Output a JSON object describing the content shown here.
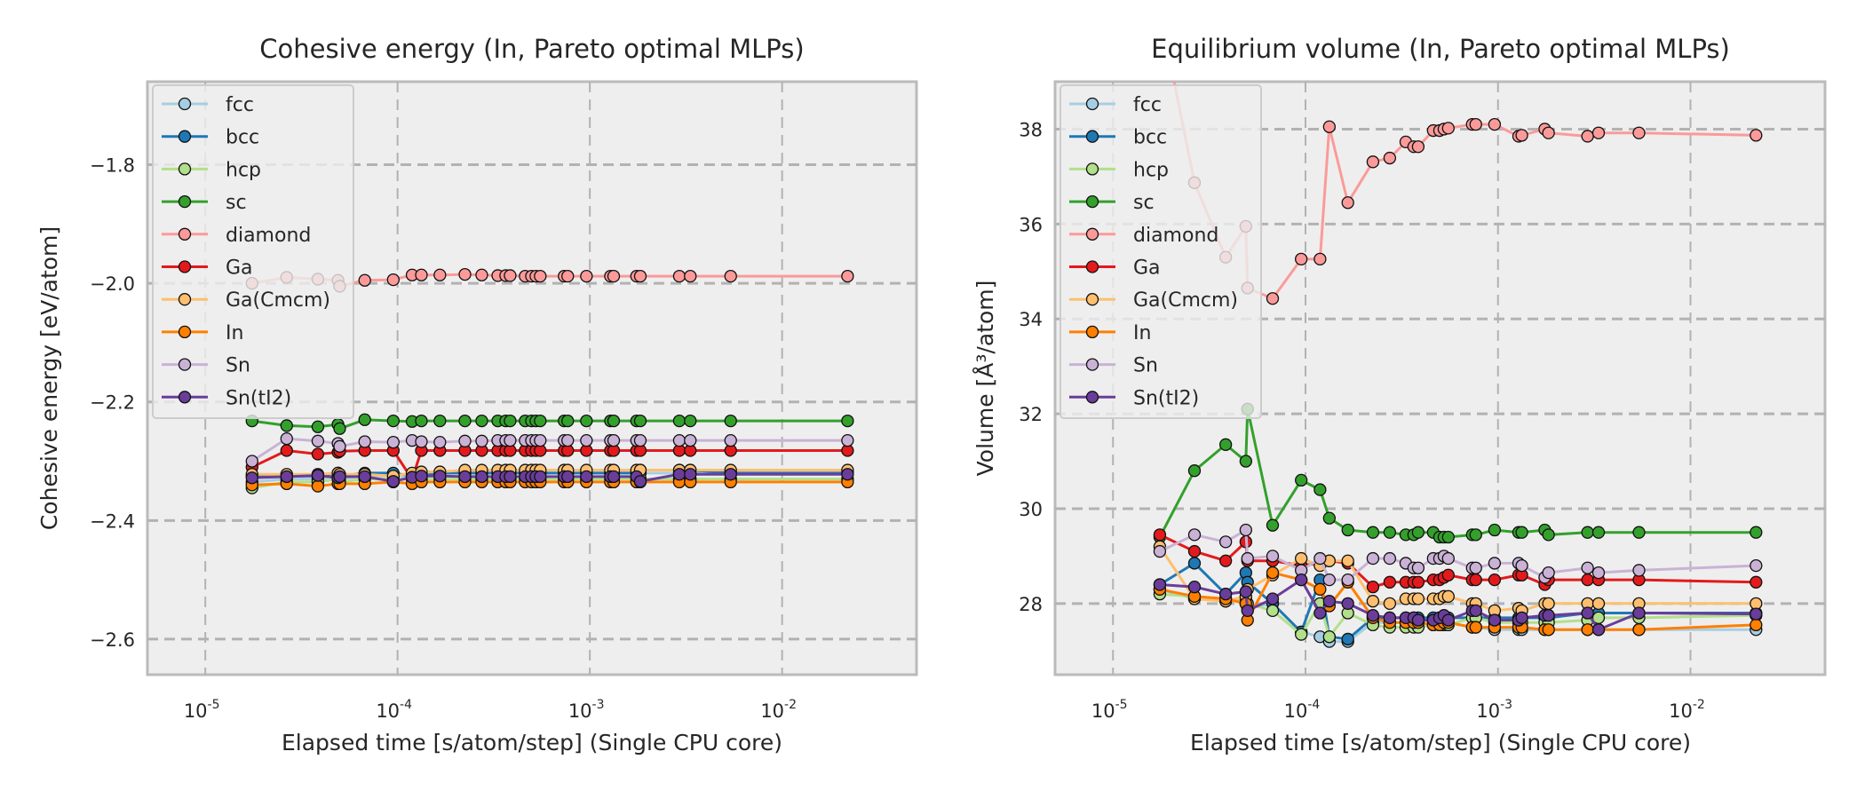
{
  "chart_data": [
    {
      "type": "line",
      "title": "Cohesive energy (In, Pareto optimal MLPs)",
      "xlabel": "Elapsed time [s/atom/step] (Single CPU core)",
      "ylabel": "Cohesive energy [eV/atom]",
      "xscale": "log",
      "xlim": [
        5e-06,
        0.05
      ],
      "ylim": [
        -2.66,
        -1.66
      ],
      "xticks": [
        1e-05,
        0.0001,
        0.001,
        0.01
      ],
      "xtick_labels": [
        {
          "base": "10",
          "exp": "-5"
        },
        {
          "base": "10",
          "exp": "-4"
        },
        {
          "base": "10",
          "exp": "-3"
        },
        {
          "base": "10",
          "exp": "-2"
        }
      ],
      "yticks": [
        -1.8,
        -2.0,
        -2.2,
        -2.4,
        -2.6
      ],
      "ytick_labels": [
        "−1.8",
        "−2.0",
        "−2.2",
        "−2.4",
        "−2.6"
      ],
      "grid": true,
      "legend_position": "top-left",
      "x": [
        1.75e-05,
        2.65e-05,
        3.85e-05,
        4.9e-05,
        5e-05,
        6.75e-05,
        9.5e-05,
        0.000119,
        0.000133,
        0.000166,
        0.000224,
        0.000274,
        0.000332,
        0.000365,
        0.000385,
        0.000461,
        0.000497,
        0.000524,
        0.000552,
        0.000735,
        0.000767,
        0.00096,
        0.00128,
        0.00133,
        0.00175,
        0.00183,
        0.00292,
        0.00333,
        0.0054,
        0.0219
      ],
      "series": [
        {
          "name": "fcc",
          "color": "#a6cee3",
          "values": [
            -2.335,
            -2.33,
            -2.33,
            -2.325,
            -2.33,
            -2.325,
            -2.325,
            -2.325,
            -2.32,
            -2.32,
            -2.32,
            -2.32,
            -2.32,
            -2.32,
            -2.32,
            -2.32,
            -2.32,
            -2.32,
            -2.32,
            -2.32,
            -2.32,
            -2.32,
            -2.32,
            -2.32,
            -2.32,
            -2.32,
            -2.32,
            -2.32,
            -2.32,
            -2.32
          ]
        },
        {
          "name": "bcc",
          "color": "#1f78b4",
          "values": [
            -2.325,
            -2.325,
            -2.325,
            -2.32,
            -2.325,
            -2.32,
            -2.32,
            -2.325,
            -2.325,
            -2.32,
            -2.32,
            -2.32,
            -2.32,
            -2.32,
            -2.32,
            -2.32,
            -2.32,
            -2.32,
            -2.32,
            -2.32,
            -2.32,
            -2.32,
            -2.32,
            -2.32,
            -2.32,
            -2.315,
            -2.315,
            -2.315,
            -2.32,
            -2.32
          ]
        },
        {
          "name": "hcp",
          "color": "#b2df8a",
          "values": [
            -2.345,
            -2.335,
            -2.335,
            -2.33,
            -2.335,
            -2.33,
            -2.33,
            -2.33,
            -2.33,
            -2.33,
            -2.33,
            -2.33,
            -2.33,
            -2.33,
            -2.33,
            -2.33,
            -2.33,
            -2.33,
            -2.33,
            -2.33,
            -2.33,
            -2.33,
            -2.33,
            -2.33,
            -2.33,
            -2.33,
            -2.33,
            -2.33,
            -2.33,
            -2.33
          ]
        },
        {
          "name": "sc",
          "color": "#33a02c",
          "values": [
            -2.232,
            -2.24,
            -2.242,
            -2.238,
            -2.245,
            -2.23,
            -2.232,
            -2.233,
            -2.232,
            -2.232,
            -2.232,
            -2.232,
            -2.232,
            -2.232,
            -2.232,
            -2.232,
            -2.232,
            -2.232,
            -2.232,
            -2.232,
            -2.232,
            -2.232,
            -2.232,
            -2.232,
            -2.232,
            -2.232,
            -2.232,
            -2.232,
            -2.232,
            -2.232
          ]
        },
        {
          "name": "diamond",
          "color": "#fb9a99",
          "values": [
            -2.0,
            -1.99,
            -1.993,
            -1.995,
            -2.005,
            -1.995,
            -1.994,
            -1.986,
            -1.986,
            -1.986,
            -1.985,
            -1.986,
            -1.987,
            -1.987,
            -1.987,
            -1.988,
            -1.988,
            -1.988,
            -1.988,
            -1.988,
            -1.988,
            -1.988,
            -1.988,
            -1.988,
            -1.988,
            -1.988,
            -1.988,
            -1.988,
            -1.988,
            -1.988
          ]
        },
        {
          "name": "Ga",
          "color": "#e31a1c",
          "values": [
            -2.31,
            -2.282,
            -2.288,
            -2.285,
            -2.283,
            -2.282,
            -2.282,
            -2.33,
            -2.282,
            -2.282,
            -2.282,
            -2.282,
            -2.282,
            -2.282,
            -2.282,
            -2.282,
            -2.282,
            -2.282,
            -2.282,
            -2.282,
            -2.282,
            -2.282,
            -2.282,
            -2.282,
            -2.282,
            -2.282,
            -2.282,
            -2.282,
            -2.282,
            -2.282
          ]
        },
        {
          "name": "Ga(Cmcm)",
          "color": "#fdbf6f",
          "values": [
            -2.322,
            -2.322,
            -2.322,
            -2.32,
            -2.322,
            -2.322,
            -2.325,
            -2.32,
            -2.318,
            -2.318,
            -2.315,
            -2.315,
            -2.315,
            -2.315,
            -2.315,
            -2.315,
            -2.315,
            -2.315,
            -2.315,
            -2.315,
            -2.315,
            -2.315,
            -2.315,
            -2.315,
            -2.315,
            -2.315,
            -2.315,
            -2.315,
            -2.315,
            -2.315
          ]
        },
        {
          "name": "In",
          "color": "#ff7f00",
          "values": [
            -2.34,
            -2.338,
            -2.342,
            -2.338,
            -2.338,
            -2.338,
            -2.335,
            -2.338,
            -2.335,
            -2.335,
            -2.335,
            -2.335,
            -2.335,
            -2.335,
            -2.335,
            -2.335,
            -2.335,
            -2.335,
            -2.335,
            -2.335,
            -2.335,
            -2.335,
            -2.335,
            -2.335,
            -2.335,
            -2.335,
            -2.335,
            -2.335,
            -2.335,
            -2.335
          ]
        },
        {
          "name": "Sn",
          "color": "#cab2d6",
          "values": [
            -2.3,
            -2.262,
            -2.266,
            -2.27,
            -2.275,
            -2.267,
            -2.268,
            -2.265,
            -2.267,
            -2.268,
            -2.266,
            -2.266,
            -2.265,
            -2.265,
            -2.265,
            -2.265,
            -2.265,
            -2.265,
            -2.265,
            -2.265,
            -2.265,
            -2.265,
            -2.265,
            -2.265,
            -2.265,
            -2.265,
            -2.265,
            -2.265,
            -2.265,
            -2.265
          ]
        },
        {
          "name": "Sn(tI2)",
          "color": "#6a3d9a",
          "values": [
            -2.328,
            -2.326,
            -2.324,
            -2.328,
            -2.326,
            -2.326,
            -2.334,
            -2.327,
            -2.325,
            -2.325,
            -2.326,
            -2.326,
            -2.326,
            -2.326,
            -2.326,
            -2.326,
            -2.326,
            -2.326,
            -2.326,
            -2.326,
            -2.326,
            -2.326,
            -2.326,
            -2.326,
            -2.326,
            -2.334,
            -2.322,
            -2.322,
            -2.322,
            -2.322
          ]
        }
      ]
    },
    {
      "type": "line",
      "title": "Equilibrium volume (In, Pareto optimal MLPs)",
      "xlabel": "Elapsed time [s/atom/step] (Single CPU core)",
      "ylabel": "Volume [Å³/atom]",
      "xscale": "log",
      "xlim": [
        5e-06,
        0.05
      ],
      "ylim": [
        26.5,
        39.0
      ],
      "xticks": [
        1e-05,
        0.0001,
        0.001,
        0.01
      ],
      "xtick_labels": [
        {
          "base": "10",
          "exp": "-5"
        },
        {
          "base": "10",
          "exp": "-4"
        },
        {
          "base": "10",
          "exp": "-3"
        },
        {
          "base": "10",
          "exp": "-2"
        }
      ],
      "yticks": [
        28,
        30,
        32,
        34,
        36,
        38
      ],
      "ytick_labels": [
        "28",
        "30",
        "32",
        "34",
        "36",
        "38"
      ],
      "grid": true,
      "legend_position": "top-left",
      "x": [
        1.75e-05,
        2.65e-05,
        3.85e-05,
        4.9e-05,
        5e-05,
        6.75e-05,
        9.5e-05,
        0.000119,
        0.000133,
        0.000166,
        0.000224,
        0.000274,
        0.000332,
        0.000365,
        0.000385,
        0.000461,
        0.000497,
        0.000524,
        0.000552,
        0.000735,
        0.000767,
        0.00096,
        0.00128,
        0.00133,
        0.00175,
        0.00183,
        0.00292,
        0.00333,
        0.0054,
        0.0219
      ],
      "series": [
        {
          "name": "fcc",
          "color": "#a6cee3",
          "values": [
            28.3,
            28.1,
            28.1,
            28.0,
            27.9,
            28.0,
            27.4,
            27.3,
            27.2,
            27.2,
            27.6,
            27.6,
            27.6,
            27.6,
            27.6,
            27.6,
            27.6,
            27.6,
            27.6,
            27.5,
            27.5,
            27.45,
            27.45,
            27.45,
            27.45,
            27.45,
            27.45,
            27.45,
            27.45,
            27.45
          ]
        },
        {
          "name": "bcc",
          "color": "#1f78b4",
          "values": [
            28.4,
            28.85,
            28.2,
            28.65,
            28.45,
            28.0,
            27.4,
            28.5,
            27.3,
            27.25,
            27.7,
            27.7,
            27.7,
            27.7,
            27.7,
            27.7,
            27.7,
            27.7,
            27.7,
            27.7,
            27.7,
            27.7,
            27.7,
            27.7,
            27.7,
            27.7,
            27.8,
            27.8,
            27.8,
            27.8
          ]
        },
        {
          "name": "hcp",
          "color": "#b2df8a",
          "values": [
            28.2,
            28.15,
            28.05,
            28.1,
            28.0,
            27.85,
            27.35,
            28.0,
            27.3,
            27.8,
            27.55,
            27.5,
            27.5,
            27.5,
            27.5,
            27.55,
            27.55,
            27.55,
            27.55,
            27.7,
            27.7,
            27.6,
            27.6,
            27.6,
            27.6,
            27.6,
            27.65,
            27.7,
            27.7,
            27.75
          ]
        },
        {
          "name": "sc",
          "color": "#33a02c",
          "values": [
            29.4,
            30.8,
            31.35,
            31.0,
            32.1,
            29.65,
            30.6,
            30.4,
            29.8,
            29.55,
            29.5,
            29.5,
            29.45,
            29.45,
            29.5,
            29.5,
            29.4,
            29.4,
            29.4,
            29.45,
            29.45,
            29.55,
            29.5,
            29.5,
            29.55,
            29.45,
            29.5,
            29.5,
            29.5,
            29.5
          ]
        },
        {
          "name": "diamond",
          "color": "#fb9a99",
          "values": [
            40.5,
            36.87,
            35.3,
            35.95,
            34.65,
            34.43,
            35.26,
            35.26,
            38.05,
            36.45,
            37.31,
            37.39,
            37.73,
            37.63,
            37.63,
            37.97,
            37.97,
            38.0,
            38.02,
            38.1,
            38.1,
            38.1,
            37.85,
            37.87,
            38.0,
            37.92,
            37.85,
            37.92,
            37.92,
            37.87
          ]
        },
        {
          "name": "Ga",
          "color": "#e31a1c",
          "values": [
            29.45,
            29.1,
            28.9,
            29.3,
            28.9,
            28.9,
            28.8,
            28.85,
            28.9,
            28.85,
            28.35,
            28.45,
            28.45,
            28.45,
            28.45,
            28.5,
            28.5,
            28.55,
            28.6,
            28.5,
            28.5,
            28.5,
            28.6,
            28.6,
            28.4,
            28.5,
            28.5,
            28.5,
            28.5,
            28.45
          ]
        },
        {
          "name": "Ga(Cmcm)",
          "color": "#fdbf6f",
          "values": [
            29.2,
            28.1,
            28.05,
            28.15,
            28.3,
            28.6,
            28.95,
            28.8,
            28.9,
            28.9,
            28.05,
            28.0,
            28.1,
            28.1,
            28.1,
            28.1,
            28.1,
            28.15,
            28.15,
            28.0,
            28.0,
            27.85,
            27.9,
            27.85,
            28.0,
            28.0,
            28.0,
            28.0,
            28.0,
            28.0
          ]
        },
        {
          "name": "In",
          "color": "#ff7f00",
          "values": [
            28.3,
            28.15,
            28.1,
            28.0,
            27.65,
            28.65,
            28.5,
            28.3,
            27.95,
            28.45,
            27.7,
            27.6,
            27.6,
            27.6,
            27.6,
            27.55,
            27.55,
            27.6,
            27.6,
            27.5,
            27.5,
            27.5,
            27.5,
            27.5,
            27.45,
            27.45,
            27.45,
            27.45,
            27.45,
            27.55
          ]
        },
        {
          "name": "Sn",
          "color": "#cab2d6",
          "values": [
            29.1,
            29.45,
            29.3,
            29.55,
            28.95,
            29.0,
            28.7,
            28.95,
            28.5,
            28.5,
            28.95,
            28.95,
            28.85,
            28.75,
            28.75,
            28.95,
            28.95,
            29.0,
            28.95,
            28.75,
            28.75,
            28.85,
            28.85,
            28.8,
            28.55,
            28.65,
            28.75,
            28.65,
            28.7,
            28.8
          ]
        },
        {
          "name": "Sn(tI2)",
          "color": "#6a3d9a",
          "values": [
            28.4,
            28.35,
            28.2,
            28.25,
            27.85,
            28.1,
            28.5,
            27.8,
            28.05,
            28.0,
            27.75,
            27.7,
            27.7,
            27.7,
            27.65,
            27.65,
            27.7,
            27.75,
            27.65,
            27.85,
            27.85,
            27.65,
            27.65,
            27.7,
            27.75,
            27.75,
            27.8,
            27.45,
            27.8,
            27.78
          ]
        }
      ]
    }
  ]
}
